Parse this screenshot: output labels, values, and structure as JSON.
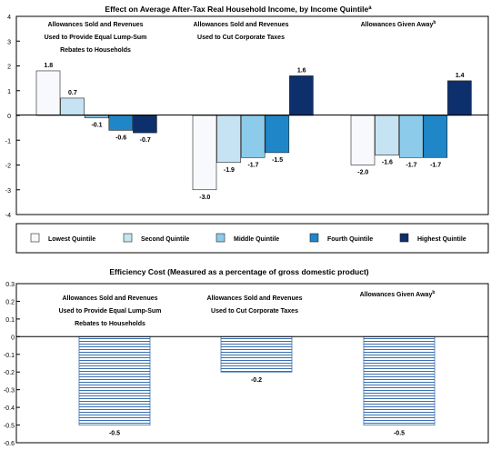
{
  "chart_data": [
    {
      "type": "bar",
      "title": "Effect on Average After-Tax Real Household Income, by Income Quintile",
      "title_note": "a",
      "xlabel": "",
      "ylabel": "",
      "ylim": [
        -4,
        4
      ],
      "yticks": [
        "4",
        "3",
        "2",
        "1",
        "0",
        "-1",
        "-2",
        "-3",
        "-4"
      ],
      "grid": false,
      "legend_position": "bottom",
      "groups": [
        {
          "label_lines": [
            "Allowances Sold and Revenues",
            "Used to Provide Equal Lump-Sum",
            "Rebates to Households"
          ],
          "note": ""
        },
        {
          "label_lines": [
            "Allowances Sold and Revenues",
            "Used to Cut Corporate Taxes"
          ],
          "note": ""
        },
        {
          "label_lines": [
            "Allowances Given Away"
          ],
          "note": "b"
        }
      ],
      "series": [
        {
          "name": "Lowest Quintile",
          "color": "#f7f9fc",
          "values": [
            1.8,
            -3.0,
            -2.0
          ],
          "labels": [
            "1.8",
            "-3.0",
            "-2.0"
          ]
        },
        {
          "name": "Second Quintile",
          "color": "#c6e3f3",
          "values": [
            0.7,
            -1.9,
            -1.6
          ],
          "labels": [
            "0.7",
            "-1.9",
            "-1.6"
          ]
        },
        {
          "name": "Middle Quintile",
          "color": "#8ccbea",
          "values": [
            -0.1,
            -1.7,
            -1.7
          ],
          "labels": [
            "-0.1",
            "-1.7",
            "-1.7"
          ]
        },
        {
          "name": "Fourth Quintile",
          "color": "#1f86c8",
          "values": [
            -0.6,
            -1.5,
            -1.7
          ],
          "labels": [
            "-0.6",
            "-1.5",
            "-1.7"
          ]
        },
        {
          "name": "Highest Quintile",
          "color": "#0d2f6b",
          "values": [
            -0.7,
            1.6,
            1.4
          ],
          "labels": [
            "-0.7",
            "1.6",
            "1.4"
          ]
        }
      ]
    },
    {
      "type": "bar",
      "title": "Efficiency Cost (Measured as a percentage of gross domestic product)",
      "xlabel": "",
      "ylabel": "",
      "ylim": [
        -0.6,
        0.3
      ],
      "yticks": [
        "0.3",
        "0.2",
        "0.1",
        "0",
        "-0.1",
        "-0.2",
        "-0.3",
        "-0.4",
        "-0.5",
        "-0.6"
      ],
      "grid": false,
      "groups": [
        {
          "label_lines": [
            "Allowances Sold and Revenues",
            "Used to Provide Equal Lump-Sum",
            "Rebates to Households"
          ],
          "note": ""
        },
        {
          "label_lines": [
            "Allowances Sold and Revenues",
            "Used to Cut Corporate Taxes"
          ],
          "note": ""
        },
        {
          "label_lines": [
            "Allowances Given Away"
          ],
          "note": "b"
        }
      ],
      "values": [
        -0.5,
        -0.2,
        -0.5
      ],
      "labels": [
        "-0.5",
        "-0.2",
        "-0.5"
      ],
      "bar_color": "#3a6fb0"
    }
  ]
}
